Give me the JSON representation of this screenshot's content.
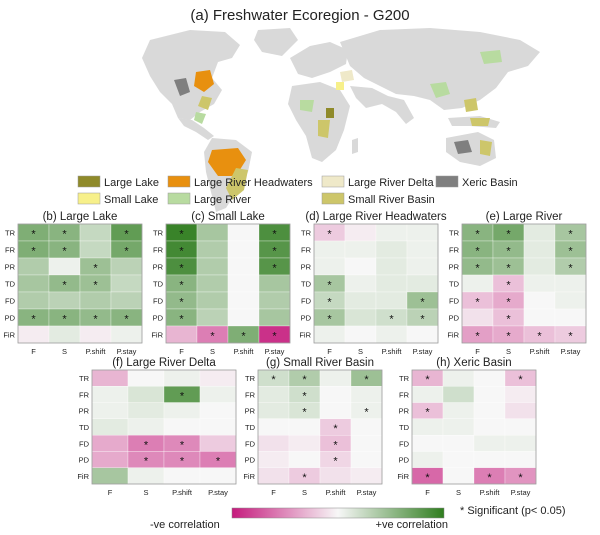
{
  "colors": {
    "land": "#d9d9d9",
    "large_lake": "#8f8a2a",
    "small_lake": "#f7f08a",
    "large_river_headwaters": "#e8900f",
    "large_river": "#b8dba0",
    "large_river_delta": "#efe9c9",
    "small_river_basin": "#cdc66a",
    "xeric_basin": "#7f7f7f",
    "neg_strong": "#c51b7d",
    "neutral": "#f7f7f7",
    "pos_strong": "#2f7d1e"
  },
  "map": {
    "title": "(a) Freshwater Ecoregion - G200"
  },
  "legend": {
    "items": [
      {
        "label": "Large Lake",
        "color_key": "large_lake"
      },
      {
        "label": "Large River Headwaters",
        "color_key": "large_river_headwaters"
      },
      {
        "label": "Large River Delta",
        "color_key": "large_river_delta"
      },
      {
        "label": "Xeric Basin",
        "color_key": "xeric_basin"
      },
      {
        "label": "Small Lake",
        "color_key": "small_lake"
      },
      {
        "label": "Large River",
        "color_key": "large_river"
      },
      {
        "label": "Small River Basin",
        "color_key": "small_river_basin"
      }
    ]
  },
  "chart_data": [
    {
      "type": "heatmap",
      "title": "(b) Large Lake",
      "rows": [
        "TR",
        "FR",
        "PR",
        "TD",
        "FD",
        "PD",
        "FiR"
      ],
      "cols": [
        "F",
        "S",
        "P.shift",
        "P.stay"
      ],
      "values": [
        [
          0.6,
          0.55,
          0.25,
          0.75
        ],
        [
          0.6,
          0.55,
          0.25,
          0.65
        ],
        [
          0.35,
          0.05,
          0.45,
          0.3
        ],
        [
          0.4,
          0.5,
          0.45,
          0.25
        ],
        [
          0.35,
          0.3,
          0.35,
          0.3
        ],
        [
          0.55,
          0.55,
          0.5,
          0.55
        ],
        [
          -0.05,
          0.1,
          -0.05,
          0.05
        ]
      ],
      "sig": [
        [
          1,
          1,
          0,
          1
        ],
        [
          1,
          1,
          0,
          1
        ],
        [
          0,
          0,
          1,
          0
        ],
        [
          0,
          1,
          1,
          0
        ],
        [
          0,
          0,
          0,
          0
        ],
        [
          1,
          1,
          1,
          1
        ],
        [
          0,
          0,
          0,
          0
        ]
      ]
    },
    {
      "type": "heatmap",
      "title": "(c) Small Lake",
      "rows": [
        "TR",
        "FR",
        "PR",
        "TD",
        "FD",
        "PD",
        "FiR"
      ],
      "cols": [
        "F",
        "S",
        "P.shift",
        "P.stay"
      ],
      "values": [
        [
          0.95,
          0.4,
          0.0,
          0.85
        ],
        [
          0.9,
          0.35,
          0.0,
          0.8
        ],
        [
          0.85,
          0.35,
          0.0,
          0.8
        ],
        [
          0.55,
          0.35,
          0.0,
          0.4
        ],
        [
          0.5,
          0.35,
          0.0,
          0.35
        ],
        [
          0.55,
          0.3,
          0.0,
          0.4
        ],
        [
          -0.3,
          -0.55,
          0.6,
          -0.9
        ]
      ],
      "sig": [
        [
          1,
          0,
          0,
          1
        ],
        [
          1,
          0,
          0,
          1
        ],
        [
          1,
          0,
          0,
          1
        ],
        [
          1,
          0,
          0,
          0
        ],
        [
          1,
          0,
          0,
          0
        ],
        [
          1,
          0,
          0,
          0
        ],
        [
          0,
          1,
          1,
          1
        ]
      ]
    },
    {
      "type": "heatmap",
      "title": "(d) Large River Headwaters",
      "rows": [
        "TR",
        "FR",
        "PR",
        "TD",
        "FD",
        "PD",
        "FiR"
      ],
      "cols": [
        "F",
        "S",
        "P.shift",
        "P.stay"
      ],
      "values": [
        [
          -0.2,
          -0.05,
          0.05,
          0.05
        ],
        [
          0.05,
          0.05,
          0.1,
          0.05
        ],
        [
          0.05,
          0.0,
          0.1,
          0.05
        ],
        [
          0.4,
          0.05,
          0.1,
          0.1
        ],
        [
          0.25,
          0.1,
          0.1,
          0.45
        ],
        [
          0.4,
          0.15,
          0.2,
          0.3
        ],
        [
          0.05,
          0.0,
          0.05,
          0.0
        ]
      ],
      "sig": [
        [
          1,
          0,
          0,
          0
        ],
        [
          0,
          0,
          0,
          0
        ],
        [
          0,
          0,
          0,
          0
        ],
        [
          1,
          0,
          0,
          0
        ],
        [
          1,
          0,
          0,
          1
        ],
        [
          1,
          0,
          1,
          1
        ],
        [
          0,
          0,
          0,
          0
        ]
      ]
    },
    {
      "type": "heatmap",
      "title": "(e) Large River",
      "rows": [
        "TR",
        "FR",
        "PR",
        "TD",
        "FD",
        "PD",
        "FiR"
      ],
      "cols": [
        "F",
        "S",
        "P.shift",
        "P.stay"
      ],
      "values": [
        [
          0.55,
          0.65,
          0.1,
          0.4
        ],
        [
          0.55,
          0.5,
          0.1,
          0.45
        ],
        [
          0.5,
          0.45,
          0.1,
          0.35
        ],
        [
          0.05,
          -0.25,
          0.05,
          0.05
        ],
        [
          -0.25,
          -0.35,
          0.0,
          0.05
        ],
        [
          -0.1,
          -0.25,
          0.0,
          0.0
        ],
        [
          -0.4,
          -0.35,
          -0.25,
          -0.2
        ]
      ],
      "sig": [
        [
          1,
          1,
          0,
          1
        ],
        [
          1,
          1,
          0,
          1
        ],
        [
          1,
          1,
          0,
          1
        ],
        [
          0,
          1,
          0,
          0
        ],
        [
          1,
          1,
          0,
          0
        ],
        [
          0,
          1,
          0,
          0
        ],
        [
          1,
          1,
          1,
          1
        ]
      ]
    },
    {
      "type": "heatmap",
      "title": "(f) Large River Delta",
      "rows": [
        "TR",
        "FR",
        "PR",
        "TD",
        "FD",
        "PD",
        "FiR"
      ],
      "cols": [
        "F",
        "S",
        "P.shift",
        "P.stay"
      ],
      "values": [
        [
          -0.3,
          0.0,
          0.05,
          -0.05
        ],
        [
          0.05,
          0.15,
          0.75,
          0.05
        ],
        [
          0.05,
          0.1,
          0.05,
          0.0
        ],
        [
          0.1,
          0.05,
          0.0,
          0.0
        ],
        [
          -0.35,
          -0.55,
          -0.5,
          -0.2
        ],
        [
          -0.35,
          -0.5,
          -0.5,
          -0.55
        ],
        [
          0.4,
          0.05,
          0.0,
          0.0
        ]
      ],
      "sig": [
        [
          0,
          0,
          0,
          0
        ],
        [
          0,
          0,
          1,
          0
        ],
        [
          0,
          0,
          0,
          0
        ],
        [
          0,
          0,
          0,
          0
        ],
        [
          0,
          1,
          1,
          0
        ],
        [
          0,
          1,
          1,
          1
        ],
        [
          0,
          0,
          0,
          0
        ]
      ]
    },
    {
      "type": "heatmap",
      "title": "(g) Small River Basin",
      "rows": [
        "TR",
        "FR",
        "PR",
        "TD",
        "FD",
        "PD",
        "FiR"
      ],
      "cols": [
        "F",
        "S",
        "P.shift",
        "P.stay"
      ],
      "values": [
        [
          0.2,
          0.35,
          0.05,
          0.45
        ],
        [
          0.1,
          0.2,
          0.0,
          0.05
        ],
        [
          0.1,
          0.15,
          0.0,
          0.05
        ],
        [
          0.0,
          0.0,
          -0.2,
          0.0
        ],
        [
          -0.1,
          -0.05,
          -0.25,
          0.0
        ],
        [
          -0.05,
          0.0,
          -0.15,
          0.0
        ],
        [
          -0.1,
          -0.2,
          -0.1,
          -0.05
        ]
      ],
      "sig": [
        [
          1,
          1,
          0,
          1
        ],
        [
          0,
          1,
          0,
          0
        ],
        [
          0,
          1,
          0,
          1
        ],
        [
          0,
          0,
          1,
          0
        ],
        [
          0,
          0,
          1,
          0
        ],
        [
          0,
          0,
          1,
          0
        ],
        [
          0,
          1,
          0,
          0
        ]
      ]
    },
    {
      "type": "heatmap",
      "title": "(h) Xeric Basin",
      "rows": [
        "TR",
        "FR",
        "PR",
        "TD",
        "FD",
        "PD",
        "FiR"
      ],
      "cols": [
        "F",
        "S",
        "P.shift",
        "P.stay"
      ],
      "values": [
        [
          -0.3,
          0.05,
          0.0,
          -0.25
        ],
        [
          0.05,
          0.2,
          0.0,
          -0.05
        ],
        [
          -0.25,
          0.05,
          0.0,
          -0.1
        ],
        [
          0.05,
          0.05,
          0.0,
          0.0
        ],
        [
          0.0,
          0.0,
          0.05,
          0.05
        ],
        [
          0.05,
          0.0,
          0.0,
          0.0
        ],
        [
          -0.65,
          0.0,
          -0.55,
          -0.45
        ]
      ],
      "sig": [
        [
          1,
          0,
          0,
          1
        ],
        [
          0,
          0,
          0,
          0
        ],
        [
          1,
          0,
          0,
          0
        ],
        [
          0,
          0,
          0,
          0
        ],
        [
          0,
          0,
          0,
          0
        ],
        [
          0,
          0,
          0,
          0
        ],
        [
          1,
          0,
          1,
          1
        ]
      ]
    }
  ],
  "colorbar": {
    "neg_label": "-ve correlation",
    "pos_label": "+ve correlation",
    "sig_note": "* Significant (p< 0.05)"
  }
}
